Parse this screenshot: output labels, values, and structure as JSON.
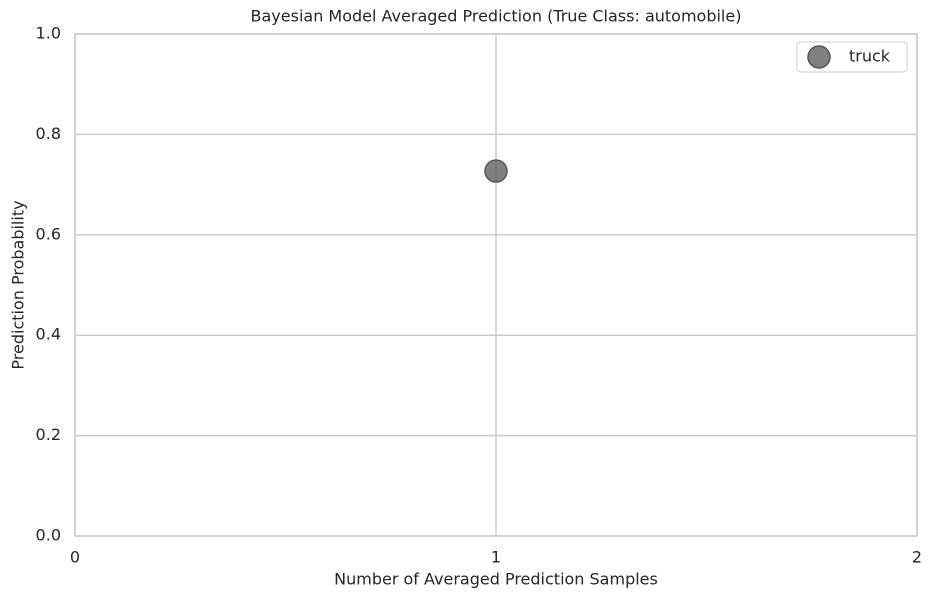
{
  "chart_data": {
    "type": "scatter",
    "title": "Bayesian Model Averaged Prediction (True Class: automobile)",
    "x_label": "Number of Averaged Prediction Samples",
    "y_label": "Prediction Probability",
    "series": [
      {
        "name": "truck",
        "color": "#555555",
        "x": [
          1
        ],
        "values": [
          0.727
        ]
      }
    ],
    "xlim": [
      0,
      2
    ],
    "xticks": [
      0,
      1,
      2
    ],
    "ylim": [
      0,
      1
    ],
    "yticks": [
      {
        "value": 0,
        "label": "0.0"
      },
      0.2,
      0.4,
      0.6,
      0.8,
      {
        "value": 1,
        "label": "1.0"
      }
    ],
    "grid": true,
    "legend": "upper right"
  }
}
